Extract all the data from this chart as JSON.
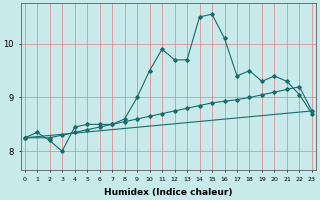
{
  "xlabel": "Humidex (Indice chaleur)",
  "bg_color": "#c8eaea",
  "grid_color": "#e08080",
  "line_color": "#1a6b6b",
  "x_ticks": [
    0,
    1,
    2,
    3,
    4,
    5,
    6,
    7,
    8,
    9,
    10,
    11,
    12,
    13,
    14,
    15,
    16,
    17,
    18,
    19,
    20,
    21,
    22,
    23
  ],
  "y_ticks": [
    8,
    9,
    10
  ],
  "ylim": [
    7.65,
    10.75
  ],
  "xlim": [
    -0.3,
    23.3
  ],
  "curve1_x": [
    0,
    1,
    2,
    3,
    4,
    5,
    6,
    7,
    8,
    9,
    10,
    11,
    12,
    13,
    14,
    15,
    16,
    17,
    18,
    19,
    20,
    21,
    22,
    23
  ],
  "curve1_y": [
    8.25,
    8.35,
    8.2,
    8.0,
    8.45,
    8.5,
    8.5,
    8.5,
    8.6,
    9.0,
    9.5,
    9.9,
    9.7,
    9.7,
    10.5,
    10.55,
    10.1,
    9.4,
    9.5,
    9.3,
    9.4,
    9.3,
    9.05,
    8.7
  ],
  "curve2_x": [
    0,
    2,
    3,
    4,
    5,
    6,
    7,
    8,
    9,
    10,
    11,
    12,
    13,
    14,
    15,
    16,
    17,
    18,
    19,
    20,
    21,
    22,
    23
  ],
  "curve2_y": [
    8.25,
    8.25,
    8.3,
    8.35,
    8.4,
    8.45,
    8.5,
    8.55,
    8.6,
    8.65,
    8.7,
    8.75,
    8.8,
    8.85,
    8.9,
    8.93,
    8.96,
    9.0,
    9.05,
    9.1,
    9.15,
    9.2,
    8.75
  ],
  "curve3_x": [
    0,
    23
  ],
  "curve3_y": [
    8.25,
    8.75
  ]
}
